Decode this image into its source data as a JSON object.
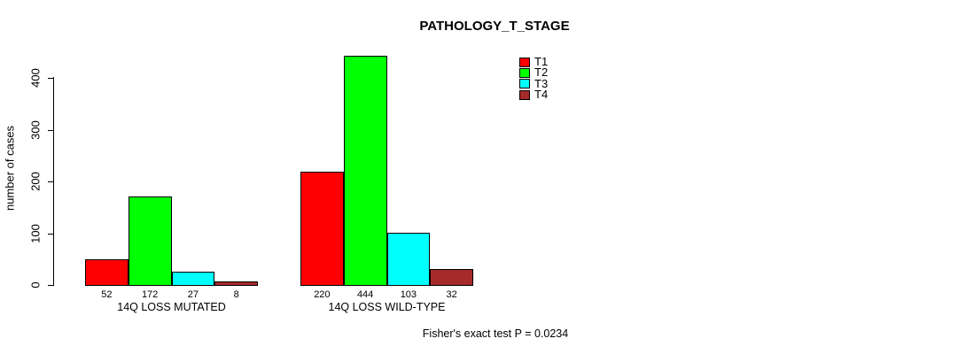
{
  "title": "PATHOLOGY_T_STAGE",
  "y_axis": {
    "label": "number of cases",
    "ticks": [
      0,
      100,
      200,
      300,
      400
    ]
  },
  "legend": {
    "items": [
      {
        "label": "T1",
        "color": "#FF0000"
      },
      {
        "label": "T2",
        "color": "#00FF00"
      },
      {
        "label": "T3",
        "color": "#00FFFF"
      },
      {
        "label": "T4",
        "color": "#A52A2A"
      }
    ]
  },
  "footer": "Fisher's exact test P = 0.0234",
  "chart_data": {
    "type": "bar",
    "title": "PATHOLOGY_T_STAGE",
    "xlabel": "",
    "ylabel": "number of cases",
    "categories": [
      "14Q LOSS MUTATED",
      "14Q LOSS WILD-TYPE"
    ],
    "series": [
      {
        "name": "T1",
        "color": "#FF0000",
        "values": [
          52,
          220
        ]
      },
      {
        "name": "T2",
        "color": "#00FF00",
        "values": [
          172,
          444
        ]
      },
      {
        "name": "T3",
        "color": "#00FFFF",
        "values": [
          27,
          103
        ]
      },
      {
        "name": "T4",
        "color": "#A52A2A",
        "values": [
          8,
          32
        ]
      }
    ],
    "bar_value_labels": [
      [
        52,
        172,
        27,
        8
      ],
      [
        220,
        444,
        103,
        32
      ]
    ],
    "yticks": [
      0,
      100,
      200,
      300,
      400
    ],
    "ylim": [
      0,
      400
    ],
    "grid": false,
    "legend_position": "top-right",
    "legend_entries": [
      "T1",
      "T2",
      "T3",
      "T4"
    ],
    "annotation": "Fisher's exact test P = 0.0234"
  }
}
